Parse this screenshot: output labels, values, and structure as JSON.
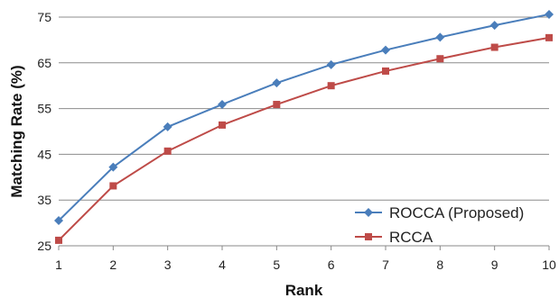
{
  "chart_data": {
    "type": "line",
    "title": "",
    "xlabel": "Rank",
    "ylabel": "Matching Rate (%)",
    "x": [
      1,
      2,
      3,
      4,
      5,
      6,
      7,
      8,
      9,
      10
    ],
    "xlim": [
      1,
      10
    ],
    "ylim": [
      25,
      75
    ],
    "yticks": [
      25,
      35,
      45,
      55,
      65,
      75
    ],
    "grid": "horizontal",
    "legend_position": "bottom-right",
    "series": [
      {
        "name": "ROCCA (Proposed)",
        "color": "#4a7ebb",
        "marker": "diamond",
        "values": [
          30.5,
          42.2,
          51.0,
          55.9,
          60.6,
          64.6,
          67.8,
          70.6,
          73.2,
          75.6
        ]
      },
      {
        "name": "RCCA",
        "color": "#be4b48",
        "marker": "square",
        "values": [
          26.2,
          38.1,
          45.7,
          51.4,
          55.9,
          60.0,
          63.2,
          65.9,
          68.4,
          70.5
        ]
      }
    ]
  }
}
